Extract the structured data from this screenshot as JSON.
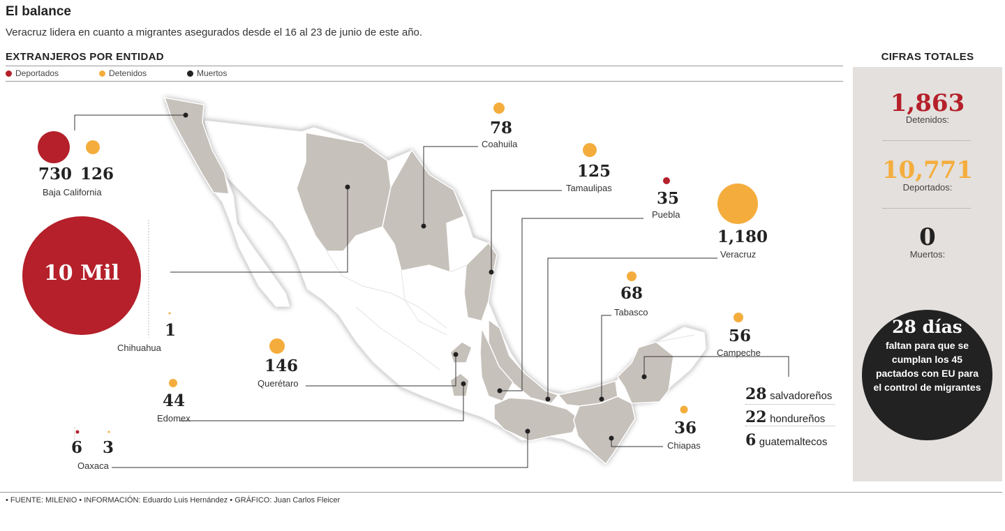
{
  "header": {
    "title": "El balance",
    "subtitle": "Veracruz lidera en cuanto a migrantes asegurados desde el 16 al 23 de junio de este año."
  },
  "section_title": "EXTRANJEROS POR ENTIDAD",
  "legend": [
    {
      "label": "Deportados",
      "color": "#b5202a"
    },
    {
      "label": "Detenidos",
      "color": "#f4ad3d"
    },
    {
      "label": "Muertos",
      "color": "#222222"
    }
  ],
  "colors": {
    "deported": "#b5202a",
    "detained": "#f4ad3d",
    "dead": "#222222",
    "state_highlight": "#c7c1bb",
    "land": "#ffffff",
    "panel": "#e3e0dd"
  },
  "states": {
    "baja_california": {
      "name": "Baja California",
      "deported": "730",
      "detained": "126"
    },
    "chihuahua": {
      "name": "Chihuahua",
      "deported": "10 Mil",
      "detained": "1"
    },
    "coahuila": {
      "name": "Coahuila",
      "detained": "78"
    },
    "tamaulipas": {
      "name": "Tamaulipas",
      "detained": "125"
    },
    "puebla": {
      "name": "Puebla",
      "deported": "35"
    },
    "veracruz": {
      "name": "Veracruz",
      "detained": "1,180"
    },
    "tabasco": {
      "name": "Tabasco",
      "detained": "68"
    },
    "campeche": {
      "name": "Campeche",
      "detained": "56"
    },
    "queretaro": {
      "name": "Querétaro",
      "detained": "146"
    },
    "edomex": {
      "name": "Edomex",
      "detained": "44"
    },
    "oaxaca": {
      "name": "Oaxaca",
      "deported": "6",
      "detained": "3"
    },
    "chiapas": {
      "name": "Chiapas",
      "detained": "36"
    }
  },
  "campeche_breakdown": [
    {
      "count": "28",
      "nationality": "salvadoreños"
    },
    {
      "count": "22",
      "nationality": "hondureños"
    },
    {
      "count": "6",
      "nationality": "guatemaltecos"
    }
  ],
  "totals": {
    "title": "CIFRAS TOTALES",
    "items": [
      {
        "value": "1,863",
        "label": "Detenidos:"
      },
      {
        "value": "10,771",
        "label": "Deportados:"
      },
      {
        "value": "0",
        "label": "Muertos:"
      }
    ],
    "days": {
      "value": "28 días",
      "text": "faltan para que se cumplan los 45 pactados con EU para el control de migrantes"
    }
  },
  "footer": "• FUENTE: MILENIO • INFORMACIÓN: Eduardo Luis Hernández • GRÁFICO: Juan Carlos Fleicer"
}
